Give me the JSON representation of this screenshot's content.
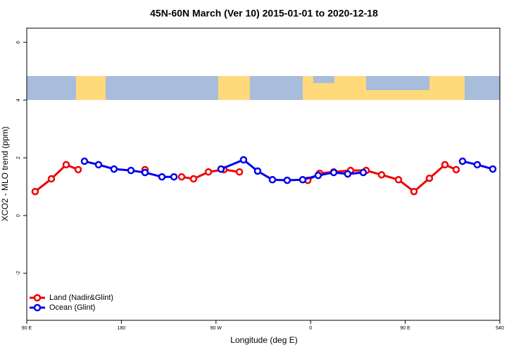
{
  "chart_data": {
    "type": "line",
    "title": "45N-60N March (Ver 10)   2015-01-01 to 2020-12-18",
    "xlabel": "Longitude (deg E)",
    "ylabel": "XCO2 - MLO trend (ppm)",
    "xlim": [
      90,
      540
    ],
    "xticks": [
      {
        "value": 90,
        "label": "90 E"
      },
      180,
      {
        "value": 270,
        "label": "90 W"
      },
      {
        "value": 360,
        "label": "0"
      },
      {
        "value": 450,
        "label": "90 E"
      },
      540
    ],
    "ylim": [
      -3.63,
      6.49
    ],
    "yticks": [
      -2,
      0,
      2,
      4,
      6
    ],
    "legend": "bottom-left",
    "series": [
      {
        "name": "Land (Nadir&Glint)",
        "color": "#ee0000",
        "x": [
          98.0,
          113.4,
          127.5,
          138.9,
          null,
          202.5,
          null,
          237.3,
          248.7,
          262.8,
          277.5,
          292.3,
          null,
          357.3,
          368.6,
          382.0,
          398.0,
          412.8,
          427.5,
          443.6,
          458.3,
          473.0,
          487.8,
          498.5
        ],
        "values": [
          0.83,
          1.27,
          1.76,
          1.59,
          null,
          1.59,
          null,
          1.34,
          1.27,
          1.51,
          1.59,
          1.51,
          null,
          1.22,
          1.46,
          1.51,
          1.56,
          1.56,
          1.41,
          1.24,
          0.83,
          1.29,
          1.76,
          1.59
        ]
      },
      {
        "name": "Ocean (Glint)",
        "color": "#0000ee",
        "x": [
          144.9,
          158.3,
          173.0,
          189.1,
          202.5,
          218.6,
          230.0,
          null,
          274.8,
          296.2,
          309.6,
          323.7,
          337.7,
          352.5,
          367.2,
          382.0,
          395.3,
          410.1,
          null,
          504.5,
          518.5,
          533.3
        ],
        "values": [
          1.88,
          1.76,
          1.61,
          1.56,
          1.49,
          1.34,
          1.34,
          null,
          1.61,
          1.93,
          1.54,
          1.24,
          1.22,
          1.24,
          1.39,
          1.49,
          1.44,
          1.49,
          null,
          1.88,
          1.76,
          1.61
        ]
      }
    ]
  }
}
